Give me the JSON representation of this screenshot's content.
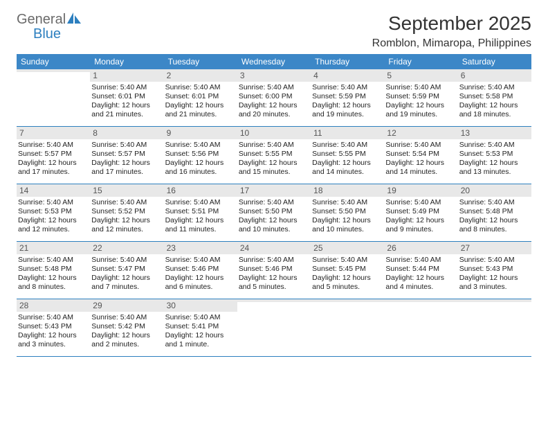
{
  "logo": {
    "general": "General",
    "blue": "Blue"
  },
  "title": "September 2025",
  "subtitle": "Romblon, Mimaropa, Philippines",
  "colors": {
    "header_bg": "#3c87c7",
    "header_text": "#ffffff",
    "daynum_bg": "#e8e8e8",
    "daynum_text": "#555555",
    "body_text": "#222222",
    "rule": "#2c7fbf",
    "logo_general": "#6a6a6a",
    "logo_blue": "#2c7fbf"
  },
  "weekdays": [
    "Sunday",
    "Monday",
    "Tuesday",
    "Wednesday",
    "Thursday",
    "Friday",
    "Saturday"
  ],
  "weeks": [
    [
      {
        "num": "",
        "sunrise": "",
        "sunset": "",
        "daylight": ""
      },
      {
        "num": "1",
        "sunrise": "Sunrise: 5:40 AM",
        "sunset": "Sunset: 6:01 PM",
        "daylight": "Daylight: 12 hours and 21 minutes."
      },
      {
        "num": "2",
        "sunrise": "Sunrise: 5:40 AM",
        "sunset": "Sunset: 6:01 PM",
        "daylight": "Daylight: 12 hours and 21 minutes."
      },
      {
        "num": "3",
        "sunrise": "Sunrise: 5:40 AM",
        "sunset": "Sunset: 6:00 PM",
        "daylight": "Daylight: 12 hours and 20 minutes."
      },
      {
        "num": "4",
        "sunrise": "Sunrise: 5:40 AM",
        "sunset": "Sunset: 5:59 PM",
        "daylight": "Daylight: 12 hours and 19 minutes."
      },
      {
        "num": "5",
        "sunrise": "Sunrise: 5:40 AM",
        "sunset": "Sunset: 5:59 PM",
        "daylight": "Daylight: 12 hours and 19 minutes."
      },
      {
        "num": "6",
        "sunrise": "Sunrise: 5:40 AM",
        "sunset": "Sunset: 5:58 PM",
        "daylight": "Daylight: 12 hours and 18 minutes."
      }
    ],
    [
      {
        "num": "7",
        "sunrise": "Sunrise: 5:40 AM",
        "sunset": "Sunset: 5:57 PM",
        "daylight": "Daylight: 12 hours and 17 minutes."
      },
      {
        "num": "8",
        "sunrise": "Sunrise: 5:40 AM",
        "sunset": "Sunset: 5:57 PM",
        "daylight": "Daylight: 12 hours and 17 minutes."
      },
      {
        "num": "9",
        "sunrise": "Sunrise: 5:40 AM",
        "sunset": "Sunset: 5:56 PM",
        "daylight": "Daylight: 12 hours and 16 minutes."
      },
      {
        "num": "10",
        "sunrise": "Sunrise: 5:40 AM",
        "sunset": "Sunset: 5:55 PM",
        "daylight": "Daylight: 12 hours and 15 minutes."
      },
      {
        "num": "11",
        "sunrise": "Sunrise: 5:40 AM",
        "sunset": "Sunset: 5:55 PM",
        "daylight": "Daylight: 12 hours and 14 minutes."
      },
      {
        "num": "12",
        "sunrise": "Sunrise: 5:40 AM",
        "sunset": "Sunset: 5:54 PM",
        "daylight": "Daylight: 12 hours and 14 minutes."
      },
      {
        "num": "13",
        "sunrise": "Sunrise: 5:40 AM",
        "sunset": "Sunset: 5:53 PM",
        "daylight": "Daylight: 12 hours and 13 minutes."
      }
    ],
    [
      {
        "num": "14",
        "sunrise": "Sunrise: 5:40 AM",
        "sunset": "Sunset: 5:53 PM",
        "daylight": "Daylight: 12 hours and 12 minutes."
      },
      {
        "num": "15",
        "sunrise": "Sunrise: 5:40 AM",
        "sunset": "Sunset: 5:52 PM",
        "daylight": "Daylight: 12 hours and 12 minutes."
      },
      {
        "num": "16",
        "sunrise": "Sunrise: 5:40 AM",
        "sunset": "Sunset: 5:51 PM",
        "daylight": "Daylight: 12 hours and 11 minutes."
      },
      {
        "num": "17",
        "sunrise": "Sunrise: 5:40 AM",
        "sunset": "Sunset: 5:50 PM",
        "daylight": "Daylight: 12 hours and 10 minutes."
      },
      {
        "num": "18",
        "sunrise": "Sunrise: 5:40 AM",
        "sunset": "Sunset: 5:50 PM",
        "daylight": "Daylight: 12 hours and 10 minutes."
      },
      {
        "num": "19",
        "sunrise": "Sunrise: 5:40 AM",
        "sunset": "Sunset: 5:49 PM",
        "daylight": "Daylight: 12 hours and 9 minutes."
      },
      {
        "num": "20",
        "sunrise": "Sunrise: 5:40 AM",
        "sunset": "Sunset: 5:48 PM",
        "daylight": "Daylight: 12 hours and 8 minutes."
      }
    ],
    [
      {
        "num": "21",
        "sunrise": "Sunrise: 5:40 AM",
        "sunset": "Sunset: 5:48 PM",
        "daylight": "Daylight: 12 hours and 8 minutes."
      },
      {
        "num": "22",
        "sunrise": "Sunrise: 5:40 AM",
        "sunset": "Sunset: 5:47 PM",
        "daylight": "Daylight: 12 hours and 7 minutes."
      },
      {
        "num": "23",
        "sunrise": "Sunrise: 5:40 AM",
        "sunset": "Sunset: 5:46 PM",
        "daylight": "Daylight: 12 hours and 6 minutes."
      },
      {
        "num": "24",
        "sunrise": "Sunrise: 5:40 AM",
        "sunset": "Sunset: 5:46 PM",
        "daylight": "Daylight: 12 hours and 5 minutes."
      },
      {
        "num": "25",
        "sunrise": "Sunrise: 5:40 AM",
        "sunset": "Sunset: 5:45 PM",
        "daylight": "Daylight: 12 hours and 5 minutes."
      },
      {
        "num": "26",
        "sunrise": "Sunrise: 5:40 AM",
        "sunset": "Sunset: 5:44 PM",
        "daylight": "Daylight: 12 hours and 4 minutes."
      },
      {
        "num": "27",
        "sunrise": "Sunrise: 5:40 AM",
        "sunset": "Sunset: 5:43 PM",
        "daylight": "Daylight: 12 hours and 3 minutes."
      }
    ],
    [
      {
        "num": "28",
        "sunrise": "Sunrise: 5:40 AM",
        "sunset": "Sunset: 5:43 PM",
        "daylight": "Daylight: 12 hours and 3 minutes."
      },
      {
        "num": "29",
        "sunrise": "Sunrise: 5:40 AM",
        "sunset": "Sunset: 5:42 PM",
        "daylight": "Daylight: 12 hours and 2 minutes."
      },
      {
        "num": "30",
        "sunrise": "Sunrise: 5:40 AM",
        "sunset": "Sunset: 5:41 PM",
        "daylight": "Daylight: 12 hours and 1 minute."
      },
      {
        "num": "",
        "sunrise": "",
        "sunset": "",
        "daylight": ""
      },
      {
        "num": "",
        "sunrise": "",
        "sunset": "",
        "daylight": ""
      },
      {
        "num": "",
        "sunrise": "",
        "sunset": "",
        "daylight": ""
      },
      {
        "num": "",
        "sunrise": "",
        "sunset": "",
        "daylight": ""
      }
    ]
  ]
}
